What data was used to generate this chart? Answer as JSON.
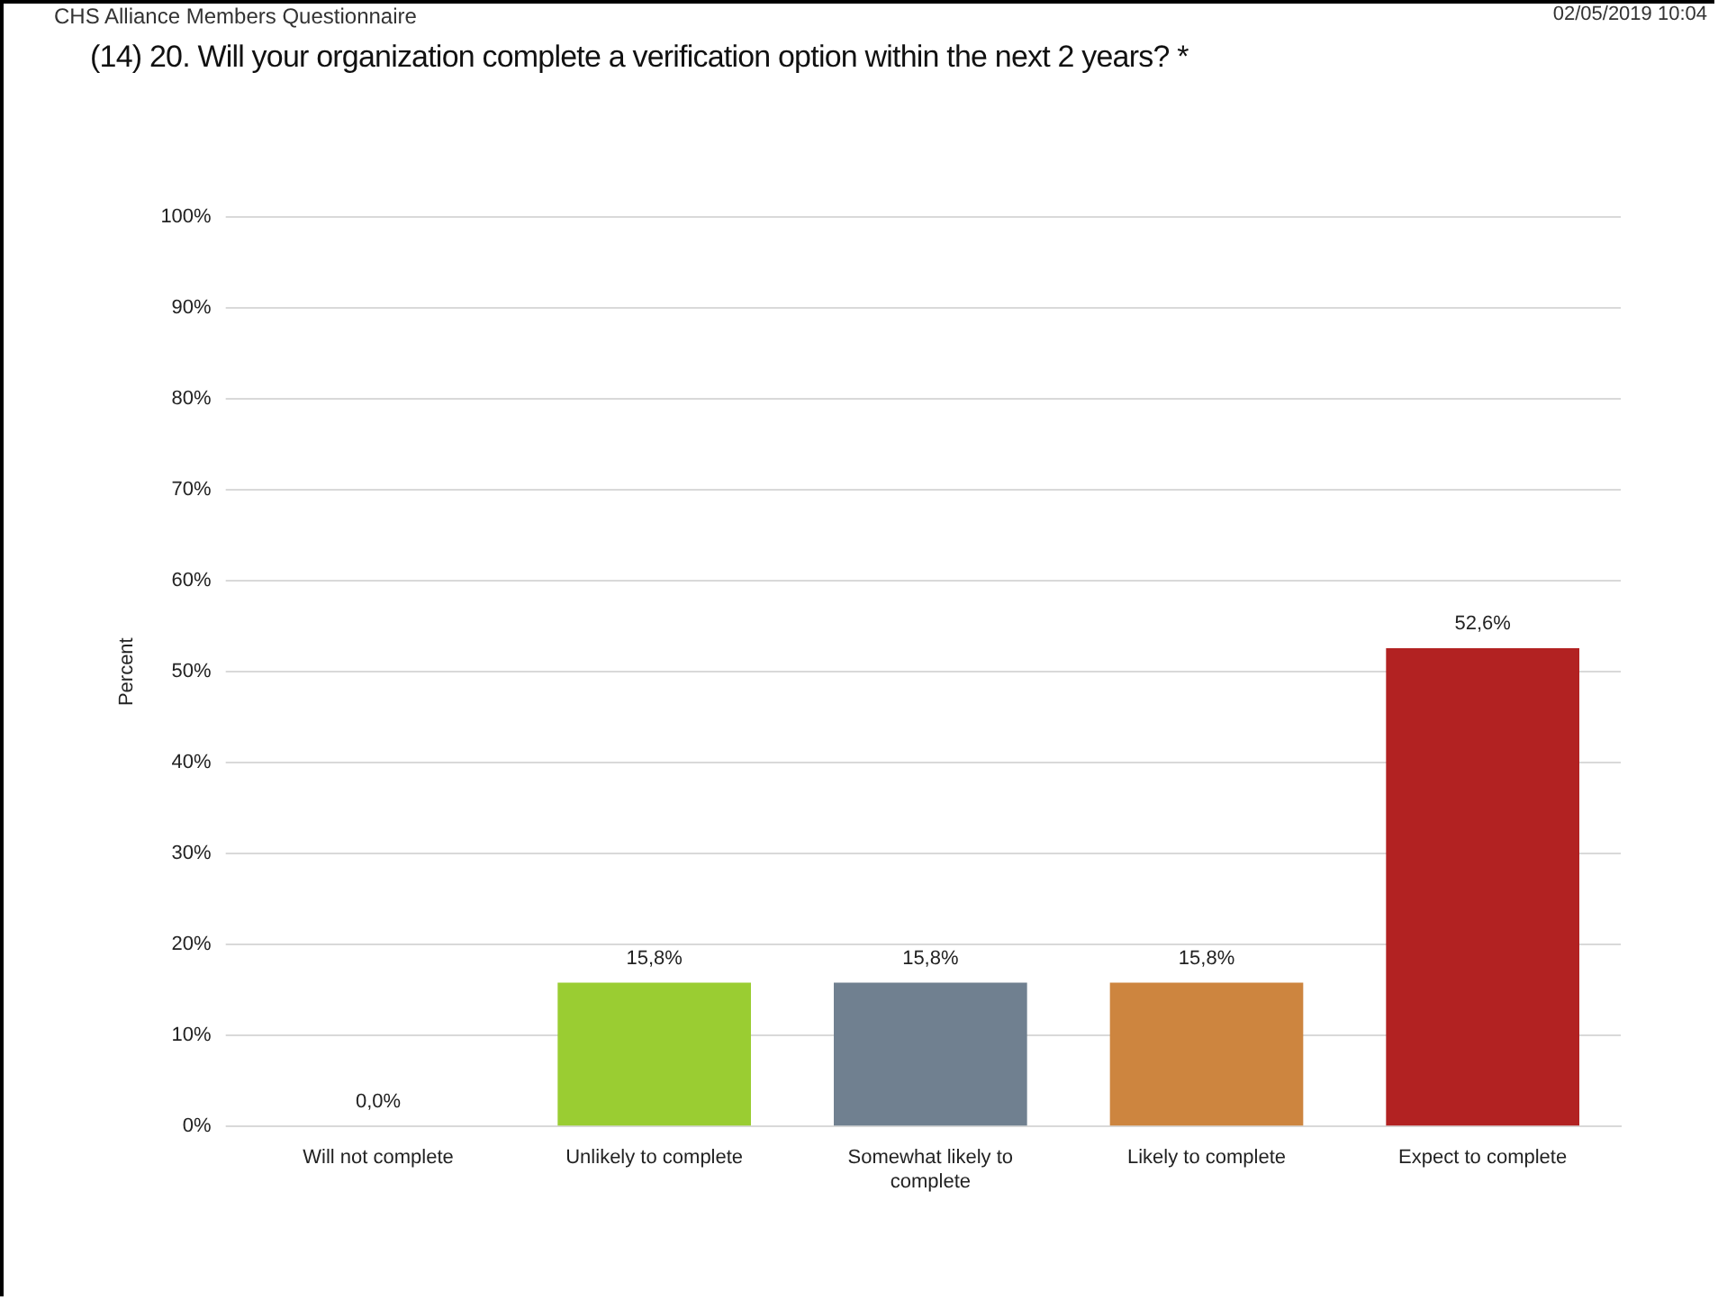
{
  "chart_data": {
    "type": "bar",
    "title": "(14) 20. Will your organization complete a verification option within the next 2 years? *",
    "ylabel": "Percent",
    "categories": [
      "Will not complete",
      "Unlikely to complete",
      "Somewhat likely to complete",
      "Likely to complete",
      "Expect to complete"
    ],
    "values": [
      0,
      15.8,
      15.8,
      15.8,
      52.6
    ],
    "colors": [
      "#4f81bd",
      "#9acd32",
      "#708090",
      "#cd853f",
      "#b22222"
    ],
    "value_labels": [
      "0,0%",
      "15,8%",
      "15,8%",
      "15,8%",
      "52,6%"
    ],
    "ylim": [
      0,
      100
    ],
    "yticks": [
      {
        "value": 0,
        "label": "0%"
      },
      {
        "value": 10,
        "label": "10%"
      },
      {
        "value": 20,
        "label": "20%"
      },
      {
        "value": 30,
        "label": "30%"
      },
      {
        "value": 40,
        "label": "40%"
      },
      {
        "value": 50,
        "label": "50%"
      },
      {
        "value": 60,
        "label": "60%"
      },
      {
        "value": 70,
        "label": "70%"
      },
      {
        "value": 80,
        "label": "80%"
      },
      {
        "value": 90,
        "label": "90%"
      },
      {
        "value": 100,
        "label": "100%"
      }
    ],
    "grid": "y",
    "legend": false,
    "annotations": [
      "CHS Alliance Members Questionnaire",
      "02/05/2019 10:04"
    ]
  }
}
